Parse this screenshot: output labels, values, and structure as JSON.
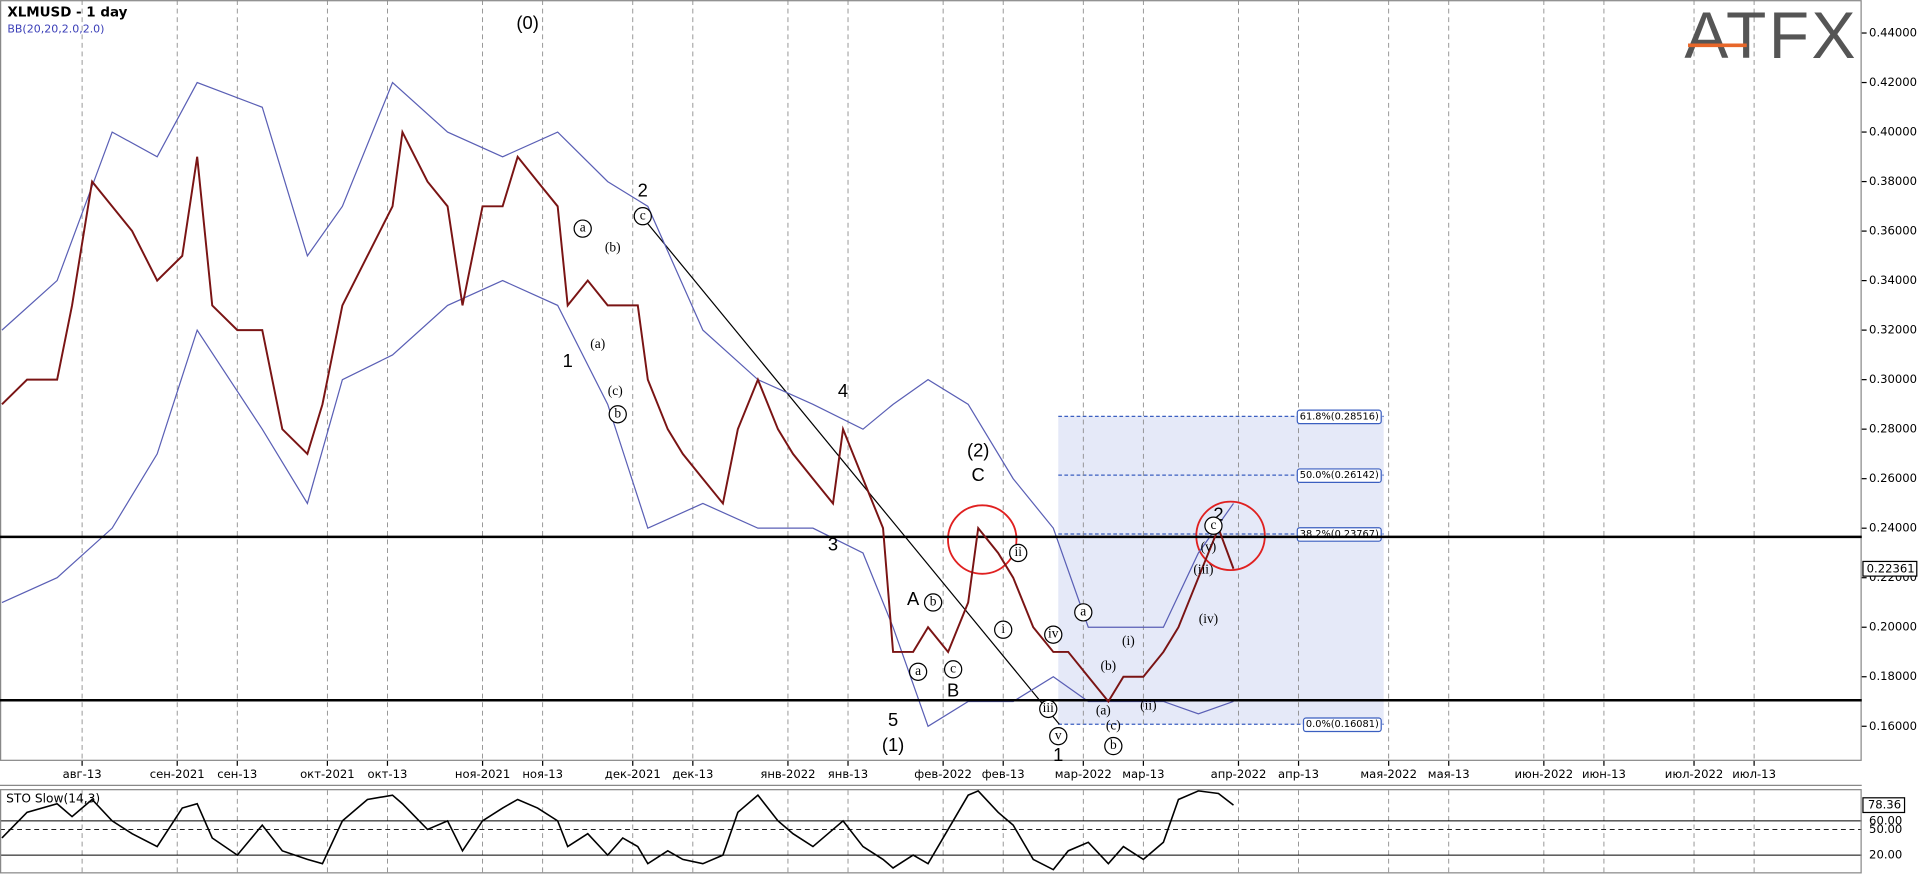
{
  "logo": "ATFX",
  "chart_data": [
    {
      "type": "line",
      "title": "XLMUSD - 1 day",
      "subtitle": "BB(20,20,2.0,2.0)",
      "xlim": [
        -4.4,
        367.5
      ],
      "ylim": [
        0.146,
        0.4533
      ],
      "xticks": [
        {
          "value": 12,
          "label": "авг-13"
        },
        {
          "value": 31,
          "label": "сен-2021"
        },
        {
          "value": 43,
          "label": "сен-13"
        },
        {
          "value": 61,
          "label": "окт-2021"
        },
        {
          "value": 73,
          "label": "окт-13"
        },
        {
          "value": 92,
          "label": "ноя-2021"
        },
        {
          "value": 104,
          "label": "ноя-13"
        },
        {
          "value": 122,
          "label": "дек-2021"
        },
        {
          "value": 134,
          "label": "дек-13"
        },
        {
          "value": 153,
          "label": "янв-2022"
        },
        {
          "value": 165,
          "label": "янв-13"
        },
        {
          "value": 184,
          "label": "фев-2022"
        },
        {
          "value": 196,
          "label": "фев-13"
        },
        {
          "value": 212,
          "label": "мар-2022"
        },
        {
          "value": 224,
          "label": "мар-13"
        },
        {
          "value": 243,
          "label": "апр-2022"
        },
        {
          "value": 255,
          "label": "апр-13"
        },
        {
          "value": 273,
          "label": "мая-2022"
        },
        {
          "value": 285,
          "label": "мая-13"
        },
        {
          "value": 304,
          "label": "июн-2022"
        },
        {
          "value": 316,
          "label": "июн-13"
        },
        {
          "value": 334,
          "label": "июл-2022"
        },
        {
          "value": 346,
          "label": "июл-13"
        }
      ],
      "yticks": [
        {
          "value": 0.16,
          "label": "0.16000"
        },
        {
          "value": 0.18,
          "label": "0.18000"
        },
        {
          "value": 0.2,
          "label": "0.20000"
        },
        {
          "value": 0.22,
          "label": "0.22000"
        },
        {
          "value": 0.24,
          "label": "0.24000"
        },
        {
          "value": 0.26,
          "label": "0.26000"
        },
        {
          "value": 0.28,
          "label": "0.28000"
        },
        {
          "value": 0.3,
          "label": "0.30000"
        },
        {
          "value": 0.32,
          "label": "0.32000"
        },
        {
          "value": 0.34,
          "label": "0.34000"
        },
        {
          "value": 0.36,
          "label": "0.36000"
        },
        {
          "value": 0.38,
          "label": "0.38000"
        },
        {
          "value": 0.4,
          "label": "0.40000"
        },
        {
          "value": 0.42,
          "label": "0.42000"
        },
        {
          "value": 0.44,
          "label": "0.44000"
        }
      ],
      "xgrid": true,
      "x": [
        -4,
        1,
        7,
        10,
        14,
        18,
        22,
        27,
        32,
        35,
        38,
        43,
        48,
        52,
        57,
        60,
        64,
        69,
        74,
        76,
        81,
        85,
        88,
        92,
        96,
        99,
        103,
        107,
        109,
        113,
        117,
        120,
        123,
        125,
        129,
        132,
        136,
        140,
        143,
        147,
        151,
        154,
        158,
        162,
        164,
        168,
        172,
        174,
        178,
        181,
        185,
        189,
        191,
        195,
        198,
        202,
        206,
        209,
        213,
        217,
        220,
        224,
        228,
        231,
        235,
        239,
        242
      ],
      "series": [
        {
          "name": "XLMUSD",
          "color": "#7a1414",
          "values": [
            0.29,
            0.3,
            0.3,
            0.33,
            0.38,
            0.37,
            0.36,
            0.34,
            0.35,
            0.39,
            0.33,
            0.32,
            0.32,
            0.28,
            0.27,
            0.29,
            0.33,
            0.35,
            0.37,
            0.4,
            0.38,
            0.37,
            0.33,
            0.37,
            0.37,
            0.39,
            0.38,
            0.37,
            0.33,
            0.34,
            0.33,
            0.33,
            0.33,
            0.3,
            0.28,
            0.27,
            0.26,
            0.25,
            0.28,
            0.3,
            0.28,
            0.27,
            0.26,
            0.25,
            0.28,
            0.26,
            0.24,
            0.19,
            0.19,
            0.2,
            0.19,
            0.21,
            0.24,
            0.23,
            0.22,
            0.2,
            0.19,
            0.19,
            0.18,
            0.17,
            0.18,
            0.18,
            0.19,
            0.2,
            0.22,
            0.24,
            0.22361
          ]
        }
      ],
      "bands": {
        "color": "#5a5fb5",
        "x": [
          -4,
          7,
          18,
          27,
          35,
          48,
          57,
          64,
          74,
          85,
          96,
          107,
          117,
          125,
          136,
          147,
          158,
          168,
          174,
          181,
          189,
          198,
          206,
          213,
          220,
          228,
          235,
          242
        ],
        "upper": [
          0.32,
          0.34,
          0.4,
          0.39,
          0.42,
          0.41,
          0.35,
          0.37,
          0.42,
          0.4,
          0.39,
          0.4,
          0.38,
          0.37,
          0.32,
          0.3,
          0.29,
          0.28,
          0.29,
          0.3,
          0.29,
          0.26,
          0.24,
          0.2,
          0.2,
          0.2,
          0.23,
          0.25
        ],
        "lower": [
          0.21,
          0.22,
          0.24,
          0.27,
          0.32,
          0.28,
          0.25,
          0.3,
          0.31,
          0.33,
          0.34,
          0.33,
          0.29,
          0.24,
          0.25,
          0.24,
          0.24,
          0.23,
          0.2,
          0.16,
          0.17,
          0.17,
          0.18,
          0.17,
          0.17,
          0.17,
          0.165,
          0.17
        ]
      },
      "levels": [
        0.2365,
        0.1705
      ],
      "fib_range_x": [
        207,
        272
      ],
      "fib_levels": [
        {
          "value": 0.28516,
          "label": "61.8%(0.28516)"
        },
        {
          "value": 0.26142,
          "label": "50.0%(0.26142)"
        },
        {
          "value": 0.23767,
          "label": "38.2%(0.23767)"
        },
        {
          "value": 0.16081,
          "label": "0.0%(0.16081)"
        }
      ],
      "annotations": [
        {
          "text": "(0)",
          "x": 101,
          "y": 0.4435,
          "circled": false
        },
        {
          "text": "2",
          "x": 124,
          "y": 0.376,
          "circled": false
        },
        {
          "text": "1",
          "x": 109,
          "y": 0.307,
          "circled": false
        },
        {
          "text": "4",
          "x": 164,
          "y": 0.295,
          "circled": false
        },
        {
          "text": "3",
          "x": 162,
          "y": 0.233,
          "circled": false
        },
        {
          "text": "5",
          "x": 174,
          "y": 0.162,
          "circled": false
        },
        {
          "text": "(1)",
          "x": 174,
          "y": 0.152,
          "circled": false
        },
        {
          "text": "(2)",
          "x": 191,
          "y": 0.271,
          "circled": false
        },
        {
          "text": "C",
          "x": 191,
          "y": 0.261,
          "circled": false
        },
        {
          "text": "A",
          "x": 178,
          "y": 0.211,
          "circled": false
        },
        {
          "text": "B",
          "x": 186,
          "y": 0.174,
          "circled": false
        },
        {
          "text": "1",
          "x": 207,
          "y": 0.148,
          "circled": false
        },
        {
          "text": "2",
          "x": 239,
          "y": 0.245,
          "circled": false
        },
        {
          "text": "a",
          "x": 112,
          "y": 0.361,
          "circled": true
        },
        {
          "text": "(b)",
          "x": 118,
          "y": 0.353,
          "circled": false
        },
        {
          "text": "(a)",
          "x": 115,
          "y": 0.314,
          "circled": false
        },
        {
          "text": "(c)",
          "x": 118.5,
          "y": 0.295,
          "circled": false
        },
        {
          "text": "b",
          "x": 119,
          "y": 0.286,
          "circled": true
        },
        {
          "text": "c",
          "x": 124,
          "y": 0.366,
          "circled": true
        },
        {
          "text": "b",
          "x": 182,
          "y": 0.21,
          "circled": true
        },
        {
          "text": "a",
          "x": 179,
          "y": 0.182,
          "circled": true
        },
        {
          "text": "c",
          "x": 186,
          "y": 0.183,
          "circled": true
        },
        {
          "text": "ii",
          "x": 199,
          "y": 0.23,
          "circled": true
        },
        {
          "text": "i",
          "x": 196,
          "y": 0.199,
          "circled": true
        },
        {
          "text": "iv",
          "x": 206,
          "y": 0.197,
          "circled": true
        },
        {
          "text": "iii",
          "x": 205,
          "y": 0.167,
          "circled": true
        },
        {
          "text": "v",
          "x": 207,
          "y": 0.156,
          "circled": true
        },
        {
          "text": "a",
          "x": 212,
          "y": 0.206,
          "circled": true
        },
        {
          "text": "(b)",
          "x": 217,
          "y": 0.184,
          "circled": false
        },
        {
          "text": "(a)",
          "x": 216,
          "y": 0.166,
          "circled": false
        },
        {
          "text": "(c)",
          "x": 218,
          "y": 0.16,
          "circled": false
        },
        {
          "text": "b",
          "x": 218,
          "y": 0.152,
          "circled": true
        },
        {
          "text": "(i)",
          "x": 221,
          "y": 0.194,
          "circled": false
        },
        {
          "text": "(ii)",
          "x": 225,
          "y": 0.168,
          "circled": false
        },
        {
          "text": "(iii)",
          "x": 236,
          "y": 0.223,
          "circled": false
        },
        {
          "text": "(iv)",
          "x": 237,
          "y": 0.203,
          "circled": false
        },
        {
          "text": "(v)",
          "x": 237,
          "y": 0.232,
          "circled": false
        },
        {
          "text": "c",
          "x": 238,
          "y": 0.241,
          "circled": true
        }
      ]
    },
    {
      "type": "line",
      "title": "STO Slow(14,3)",
      "xlim": [
        -4.4,
        367.5
      ],
      "ylim": [
        0,
        100
      ],
      "yticks": [
        {
          "value": 20,
          "label": "20.00"
        },
        {
          "value": 50,
          "label": "50.00"
        },
        {
          "value": 60,
          "label": "60.00"
        }
      ],
      "x": [
        -4,
        1,
        7,
        10,
        14,
        18,
        22,
        27,
        32,
        35,
        38,
        43,
        48,
        52,
        57,
        60,
        64,
        69,
        74,
        76,
        81,
        85,
        88,
        92,
        96,
        99,
        103,
        107,
        109,
        113,
        117,
        120,
        123,
        125,
        129,
        132,
        136,
        140,
        143,
        147,
        151,
        154,
        158,
        162,
        164,
        168,
        172,
        174,
        178,
        181,
        185,
        189,
        191,
        195,
        198,
        202,
        206,
        209,
        213,
        217,
        220,
        224,
        228,
        231,
        235,
        239,
        242
      ],
      "series": [
        {
          "name": "%K",
          "color": "#000000",
          "values": [
            40,
            70,
            80,
            65,
            85,
            60,
            45,
            30,
            75,
            80,
            40,
            20,
            55,
            25,
            15,
            10,
            60,
            85,
            90,
            80,
            50,
            60,
            25,
            60,
            75,
            85,
            75,
            60,
            30,
            45,
            20,
            40,
            30,
            10,
            25,
            15,
            10,
            20,
            70,
            90,
            60,
            45,
            30,
            50,
            60,
            30,
            15,
            5,
            20,
            10,
            50,
            90,
            95,
            70,
            55,
            15,
            3,
            25,
            35,
            10,
            30,
            15,
            35,
            85,
            95,
            92,
            78.36
          ]
        }
      ]
    }
  ]
}
